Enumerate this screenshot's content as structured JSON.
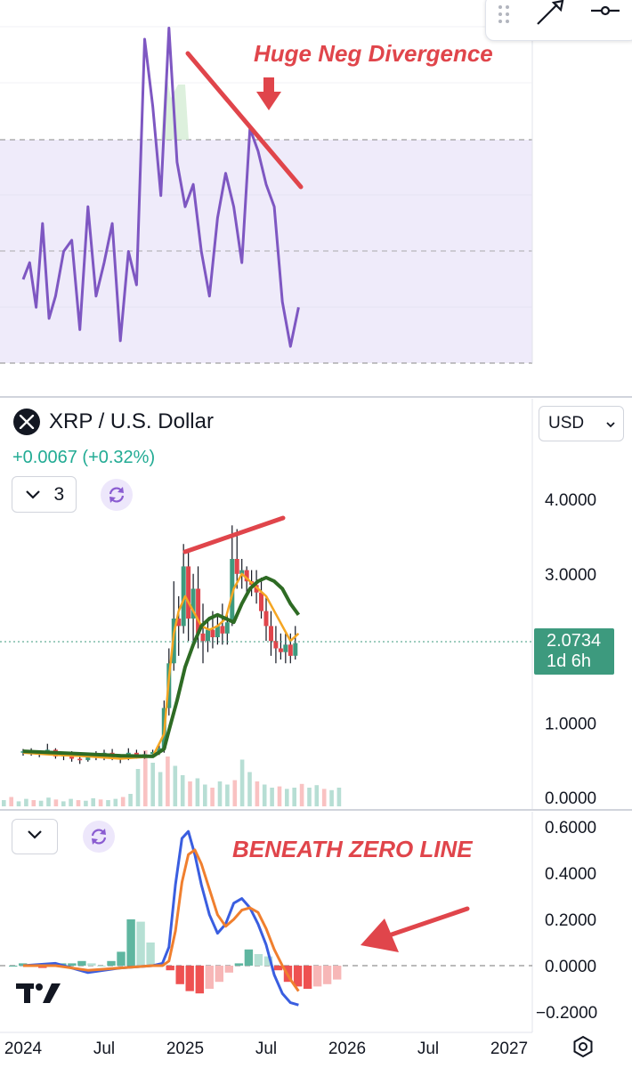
{
  "rsi_pane": {
    "annotation_text": "Huge Neg Divergence"
  },
  "header": {
    "symbol_title": "XRP / U.S. Dollar",
    "change_text": "+0.0067 (+0.32%)",
    "currency": "USD",
    "collapse_count": "3"
  },
  "last_price": {
    "value": "2.0734",
    "countdown": "1d 6h",
    "color": "#3d9a7e"
  },
  "macd_pane": {
    "annotation_text": "BENEATH ZERO LINE"
  },
  "x_axis": {
    "labels": [
      "2024",
      "Jul",
      "2025",
      "Jul",
      "2026",
      "Jul",
      "2027"
    ]
  },
  "colors": {
    "rsi": "#7e57c2",
    "ma_fast": "#f5a623",
    "ma_slow": "#2e6b24",
    "annotation": "#e0454b",
    "macd": "#3a5ee0",
    "signal": "#f07f2e",
    "hist_up": "#5fb6a0",
    "hist_down": "#ee5151"
  },
  "icons": [
    "drag-handle-icon",
    "brush-tool-icon",
    "line-tool-icon",
    "xrp-logo-icon",
    "chevron-down-icon",
    "sync-icon",
    "tradingview-logo-icon",
    "settings-icon"
  ],
  "chart_data": [
    {
      "type": "line",
      "name": "rsi",
      "bands": {
        "upper": 70,
        "middle": 50,
        "lower": 30
      },
      "ylim": [
        22,
        95
      ],
      "x": [
        0.0,
        0.04,
        0.08,
        0.12,
        0.16,
        0.2,
        0.25,
        0.3,
        0.35,
        0.4,
        0.45,
        0.5,
        0.55,
        0.6,
        0.65,
        0.7,
        0.75,
        0.8,
        0.85,
        0.9,
        0.95,
        1.0,
        1.05,
        1.1,
        1.15,
        1.2,
        1.25,
        1.3,
        1.35,
        1.4,
        1.45,
        1.5,
        1.55,
        1.6,
        1.65,
        1.7
      ],
      "values": [
        45,
        48,
        40,
        55,
        38,
        42,
        50,
        52,
        36,
        58,
        42,
        48,
        55,
        34,
        50,
        44,
        88,
        76,
        60,
        90,
        66,
        58,
        62,
        50,
        42,
        56,
        64,
        58,
        48,
        72,
        68,
        62,
        58,
        41,
        33,
        40
      ]
    },
    {
      "type": "line",
      "name": "price",
      "ylim": [
        0,
        4
      ],
      "y_ticks": [
        "4.0000",
        "3.0000",
        "1.0000",
        "0.0000"
      ],
      "series": [
        {
          "x": [
            0.0,
            0.2,
            0.4,
            0.6,
            0.8,
            0.87,
            0.9,
            0.93,
            0.96,
            1.0,
            1.05,
            1.1,
            1.15,
            1.2,
            1.25,
            1.3,
            1.35,
            1.4,
            1.45,
            1.5,
            1.55,
            1.6,
            1.65,
            1.7
          ],
          "values": [
            0.6,
            0.57,
            0.55,
            0.52,
            0.55,
            0.85,
            1.6,
            2.2,
            2.5,
            2.7,
            2.5,
            2.3,
            2.25,
            2.3,
            2.4,
            2.8,
            3.0,
            2.9,
            2.8,
            2.7,
            2.5,
            2.3,
            2.1,
            2.2
          ]
        },
        {
          "x": [
            0.0,
            0.2,
            0.4,
            0.6,
            0.8,
            0.87,
            0.9,
            0.95,
            1.0,
            1.05,
            1.1,
            1.15,
            1.2,
            1.25,
            1.3,
            1.35,
            1.4,
            1.45,
            1.5,
            1.55,
            1.6,
            1.65,
            1.7
          ],
          "values": [
            0.62,
            0.6,
            0.58,
            0.56,
            0.55,
            0.65,
            0.9,
            1.3,
            1.75,
            2.05,
            2.3,
            2.4,
            2.45,
            2.4,
            2.35,
            2.6,
            2.8,
            2.9,
            2.95,
            2.9,
            2.8,
            2.6,
            2.45
          ]
        }
      ],
      "candles": [
        {
          "x": 0.0,
          "o": 0.6,
          "h": 0.65,
          "l": 0.56,
          "c": 0.62
        },
        {
          "x": 0.05,
          "o": 0.62,
          "h": 0.66,
          "l": 0.56,
          "c": 0.58
        },
        {
          "x": 0.1,
          "o": 0.58,
          "h": 0.62,
          "l": 0.54,
          "c": 0.6
        },
        {
          "x": 0.15,
          "o": 0.6,
          "h": 0.72,
          "l": 0.58,
          "c": 0.64
        },
        {
          "x": 0.2,
          "o": 0.64,
          "h": 0.66,
          "l": 0.52,
          "c": 0.55
        },
        {
          "x": 0.25,
          "o": 0.55,
          "h": 0.6,
          "l": 0.5,
          "c": 0.57
        },
        {
          "x": 0.3,
          "o": 0.57,
          "h": 0.62,
          "l": 0.48,
          "c": 0.52
        },
        {
          "x": 0.35,
          "o": 0.52,
          "h": 0.58,
          "l": 0.45,
          "c": 0.5
        },
        {
          "x": 0.4,
          "o": 0.5,
          "h": 0.6,
          "l": 0.48,
          "c": 0.56
        },
        {
          "x": 0.45,
          "o": 0.56,
          "h": 0.62,
          "l": 0.5,
          "c": 0.53
        },
        {
          "x": 0.5,
          "o": 0.53,
          "h": 0.64,
          "l": 0.5,
          "c": 0.6
        },
        {
          "x": 0.55,
          "o": 0.6,
          "h": 0.65,
          "l": 0.5,
          "c": 0.52
        },
        {
          "x": 0.6,
          "o": 0.52,
          "h": 0.58,
          "l": 0.46,
          "c": 0.54
        },
        {
          "x": 0.65,
          "o": 0.54,
          "h": 0.66,
          "l": 0.5,
          "c": 0.6
        },
        {
          "x": 0.7,
          "o": 0.6,
          "h": 0.64,
          "l": 0.52,
          "c": 0.56
        },
        {
          "x": 0.75,
          "o": 0.56,
          "h": 0.62,
          "l": 0.52,
          "c": 0.58
        },
        {
          "x": 0.8,
          "o": 0.58,
          "h": 0.64,
          "l": 0.54,
          "c": 0.61
        },
        {
          "x": 0.84,
          "o": 0.61,
          "h": 0.7,
          "l": 0.57,
          "c": 0.66
        },
        {
          "x": 0.87,
          "o": 0.66,
          "h": 1.3,
          "l": 0.6,
          "c": 1.2
        },
        {
          "x": 0.9,
          "o": 1.2,
          "h": 2.0,
          "l": 1.1,
          "c": 1.8
        },
        {
          "x": 0.93,
          "o": 1.8,
          "h": 2.9,
          "l": 1.7,
          "c": 2.4
        },
        {
          "x": 0.96,
          "o": 2.4,
          "h": 2.7,
          "l": 1.9,
          "c": 2.3
        },
        {
          "x": 0.99,
          "o": 2.3,
          "h": 3.4,
          "l": 2.2,
          "c": 3.1
        },
        {
          "x": 1.02,
          "o": 3.1,
          "h": 3.3,
          "l": 2.1,
          "c": 2.4
        },
        {
          "x": 1.05,
          "o": 2.4,
          "h": 3.0,
          "l": 2.1,
          "c": 2.8
        },
        {
          "x": 1.08,
          "o": 2.8,
          "h": 3.1,
          "l": 2.0,
          "c": 2.2
        },
        {
          "x": 1.11,
          "o": 2.2,
          "h": 2.6,
          "l": 1.8,
          "c": 2.1
        },
        {
          "x": 1.14,
          "o": 2.1,
          "h": 2.4,
          "l": 1.95,
          "c": 2.25
        },
        {
          "x": 1.17,
          "o": 2.25,
          "h": 2.5,
          "l": 2.0,
          "c": 2.15
        },
        {
          "x": 1.2,
          "o": 2.15,
          "h": 2.45,
          "l": 2.05,
          "c": 2.3
        },
        {
          "x": 1.23,
          "o": 2.3,
          "h": 2.6,
          "l": 2.05,
          "c": 2.2
        },
        {
          "x": 1.26,
          "o": 2.2,
          "h": 2.45,
          "l": 2.05,
          "c": 2.35
        },
        {
          "x": 1.29,
          "o": 2.35,
          "h": 3.65,
          "l": 2.3,
          "c": 3.2
        },
        {
          "x": 1.32,
          "o": 3.2,
          "h": 3.6,
          "l": 2.8,
          "c": 3.0
        },
        {
          "x": 1.35,
          "o": 3.0,
          "h": 3.2,
          "l": 2.8,
          "c": 3.05
        },
        {
          "x": 1.38,
          "o": 3.05,
          "h": 3.1,
          "l": 2.7,
          "c": 2.9
        },
        {
          "x": 1.41,
          "o": 2.9,
          "h": 3.05,
          "l": 2.7,
          "c": 2.85
        },
        {
          "x": 1.44,
          "o": 2.85,
          "h": 3.05,
          "l": 2.6,
          "c": 2.75
        },
        {
          "x": 1.47,
          "o": 2.75,
          "h": 2.95,
          "l": 2.4,
          "c": 2.5
        },
        {
          "x": 1.5,
          "o": 2.5,
          "h": 2.7,
          "l": 2.1,
          "c": 2.3
        },
        {
          "x": 1.53,
          "o": 2.3,
          "h": 2.5,
          "l": 1.9,
          "c": 2.1
        },
        {
          "x": 1.56,
          "o": 2.1,
          "h": 2.3,
          "l": 1.8,
          "c": 2.0
        },
        {
          "x": 1.59,
          "o": 2.0,
          "h": 2.2,
          "l": 1.85,
          "c": 1.95
        },
        {
          "x": 1.62,
          "o": 1.95,
          "h": 2.2,
          "l": 1.8,
          "c": 2.05
        },
        {
          "x": 1.65,
          "o": 2.05,
          "h": 2.2,
          "l": 1.8,
          "c": 1.9
        },
        {
          "x": 1.68,
          "o": 1.9,
          "h": 2.3,
          "l": 1.85,
          "c": 2.07
        }
      ],
      "volume": [
        0.1,
        0.15,
        0.08,
        0.12,
        0.1,
        0.09,
        0.14,
        0.11,
        0.08,
        0.12,
        0.1,
        0.09,
        0.13,
        0.11,
        0.1,
        0.12,
        0.15,
        0.2,
        0.6,
        0.9,
        0.7,
        0.55,
        0.8,
        0.65,
        0.5,
        0.4,
        0.45,
        0.35,
        0.3,
        0.4,
        0.35,
        0.42,
        0.75,
        0.55,
        0.4,
        0.35,
        0.3,
        0.32,
        0.28,
        0.3,
        0.36,
        0.3,
        0.34,
        0.28,
        0.26,
        0.3
      ],
      "last_price": 2.0734
    },
    {
      "type": "line",
      "name": "macd",
      "ylim": [
        -0.2,
        0.6
      ],
      "y_ticks": [
        "0.6000",
        "0.4000",
        "0.2000",
        "0.0000",
        "−0.2000"
      ],
      "macd": {
        "x": [
          0.0,
          0.2,
          0.4,
          0.6,
          0.8,
          0.86,
          0.9,
          0.94,
          0.98,
          1.02,
          1.06,
          1.1,
          1.15,
          1.2,
          1.25,
          1.3,
          1.35,
          1.4,
          1.45,
          1.5,
          1.55,
          1.6,
          1.65,
          1.7
        ],
        "values": [
          0.0,
          0.01,
          -0.03,
          -0.01,
          0.0,
          0.01,
          0.08,
          0.35,
          0.55,
          0.58,
          0.48,
          0.35,
          0.22,
          0.14,
          0.18,
          0.27,
          0.29,
          0.25,
          0.18,
          0.09,
          -0.04,
          -0.12,
          -0.16,
          -0.17
        ]
      },
      "signal": {
        "x": [
          0.0,
          0.2,
          0.4,
          0.6,
          0.8,
          0.86,
          0.9,
          0.94,
          0.98,
          1.02,
          1.06,
          1.1,
          1.15,
          1.2,
          1.25,
          1.3,
          1.35,
          1.4,
          1.45,
          1.5,
          1.55,
          1.6,
          1.65,
          1.7
        ],
        "values": [
          0.0,
          0.0,
          -0.02,
          -0.01,
          0.0,
          0.0,
          0.02,
          0.15,
          0.36,
          0.48,
          0.5,
          0.44,
          0.33,
          0.22,
          0.17,
          0.2,
          0.24,
          0.25,
          0.23,
          0.16,
          0.07,
          0.0,
          -0.06,
          -0.11
        ]
      },
      "histogram": [
        0.0,
        0.01,
        0.0,
        -0.01,
        0.0,
        0.01,
        0.01,
        0.02,
        0.01,
        0.0,
        0.02,
        0.06,
        0.2,
        0.19,
        0.1,
        0.0,
        -0.02,
        -0.08,
        -0.11,
        -0.12,
        -0.1,
        -0.07,
        -0.03,
        0.01,
        0.07,
        0.05,
        0.04,
        -0.02,
        -0.07,
        -0.09,
        -0.1,
        -0.09,
        -0.08,
        -0.06
      ]
    }
  ]
}
